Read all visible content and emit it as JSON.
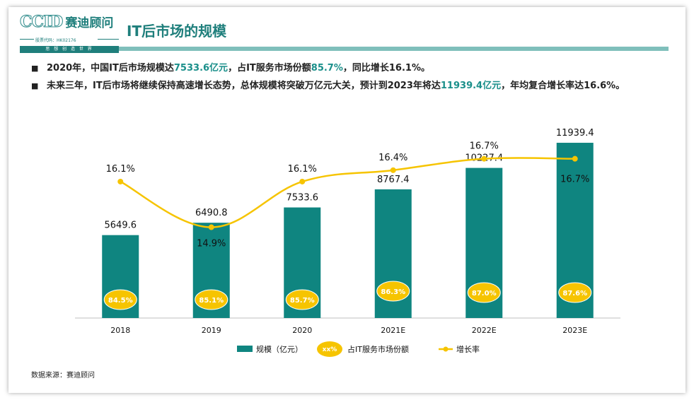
{
  "logo": {
    "ccid": "CCID",
    "name_cn": "赛迪顾问",
    "stock_code": "股票代码：HK02176",
    "slogan": "思 想 创 造 世 界"
  },
  "title": "IT后市场的规模",
  "bullets": [
    [
      {
        "text": "2020年，中国IT后市场规模达",
        "hl": false
      },
      {
        "text": "7533.6亿元",
        "hl": true
      },
      {
        "text": "，占IT服务市场份额",
        "hl": false
      },
      {
        "text": "85.7%",
        "hl": true
      },
      {
        "text": "，同比增长16.1%。",
        "hl": false
      }
    ],
    [
      {
        "text": "未来三年，IT后市场将继续保持高速增长态势，总体规模将突破万亿元大关，预计到2023年将达",
        "hl": false
      },
      {
        "text": "11939.4亿元",
        "hl": true
      },
      {
        "text": "，年均复合增长率达16.6%。",
        "hl": false
      }
    ]
  ],
  "source": "数据来源：赛迪顾问",
  "colors": {
    "bar": "#0f8580",
    "line": "#f6c400",
    "ellipse_fill": "#f6c400",
    "ellipse_text": "#ffffff",
    "accent": "#1f7f7c"
  },
  "chart_data": {
    "type": "bar",
    "categories": [
      "2018",
      "2019",
      "2020",
      "2021E",
      "2022E",
      "2023E"
    ],
    "series": [
      {
        "name": "规模（亿元）",
        "type": "bar",
        "values": [
          5649.6,
          6490.8,
          7533.6,
          8767.4,
          10227.4,
          11939.4
        ],
        "labels": [
          "5649.6",
          "6490.8",
          "7533.6",
          "8767.4",
          "10227.4",
          "11939.4"
        ]
      },
      {
        "name": "占IT服务市场份额",
        "type": "ellipse-label",
        "values": [
          84.5,
          85.1,
          85.7,
          86.3,
          87.0,
          87.6
        ],
        "labels": [
          "84.5%",
          "85.1%",
          "85.7%",
          "86.3%",
          "87.0%",
          "87.6%"
        ]
      },
      {
        "name": "增长率",
        "type": "line",
        "values": [
          16.1,
          14.9,
          16.1,
          16.4,
          16.7,
          16.7
        ],
        "labels": [
          "16.1%",
          "14.9%",
          "16.1%",
          "16.4%",
          "16.7%",
          "16.7%"
        ]
      }
    ],
    "legend": {
      "position": "bottom",
      "items": [
        {
          "label": "规模（亿元）",
          "marker": "bar"
        },
        {
          "label": "占IT服务市场份额",
          "marker": "ellipse",
          "marker_text": "xx%"
        },
        {
          "label": "增长率",
          "marker": "line"
        }
      ]
    },
    "bar_axis": {
      "min": 0,
      "max": 13000
    },
    "line_axis": {
      "min": 14.0,
      "max": 17.4
    },
    "grid": false
  }
}
